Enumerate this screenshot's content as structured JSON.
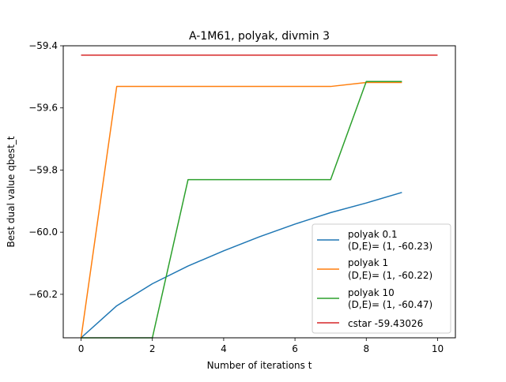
{
  "chart_data": {
    "type": "line",
    "title": "A-1M61, polyak, divmin 3",
    "xlabel": "Number of iterations t",
    "ylabel": "Best dual value qbest_t",
    "xlim": [
      -0.5,
      10.5
    ],
    "ylim": [
      -60.34,
      -59.4
    ],
    "xticks": [
      0,
      2,
      4,
      6,
      8,
      10
    ],
    "yticks": [
      -59.4,
      -59.6,
      -59.8,
      -60.0,
      -60.2
    ],
    "xtick_labels": [
      "0",
      "2",
      "4",
      "6",
      "8",
      "10"
    ],
    "ytick_labels": [
      "−59.4",
      "−59.6",
      "−59.8",
      "−60.0",
      "−60.2"
    ],
    "grid": false,
    "legend_position": "lower-right",
    "series": [
      {
        "name": "polyak 0.1",
        "label_line2": "(D,E)= (1, -60.23)",
        "color": "#1f77b4",
        "x": [
          0,
          1,
          2,
          3,
          4,
          5,
          6,
          7,
          8,
          9
        ],
        "y": [
          -60.34,
          -60.237,
          -60.166,
          -60.109,
          -60.06,
          -60.015,
          -59.974,
          -59.937,
          -59.906,
          -59.872
        ]
      },
      {
        "name": "polyak 1",
        "label_line2": "(D,E)= (1, -60.22)",
        "color": "#ff7f0e",
        "x": [
          0,
          1,
          2,
          3,
          4,
          5,
          6,
          7,
          8,
          9
        ],
        "y": [
          -60.34,
          -59.531,
          -59.531,
          -59.531,
          -59.531,
          -59.531,
          -59.531,
          -59.531,
          -59.518,
          -59.518
        ]
      },
      {
        "name": "polyak 10",
        "label_line2": "(D,E)= (1, -60.47)",
        "color": "#2ca02c",
        "x": [
          0,
          1,
          2,
          3,
          4,
          5,
          6,
          7,
          8,
          9
        ],
        "y": [
          -60.34,
          -60.34,
          -60.34,
          -59.831,
          -59.831,
          -59.831,
          -59.831,
          -59.831,
          -59.515,
          -59.515
        ]
      },
      {
        "name": "cstar -59.43026",
        "label_line2": "",
        "color": "#d62728",
        "x": [
          0,
          10
        ],
        "y": [
          -59.43026,
          -59.43026
        ]
      }
    ]
  }
}
